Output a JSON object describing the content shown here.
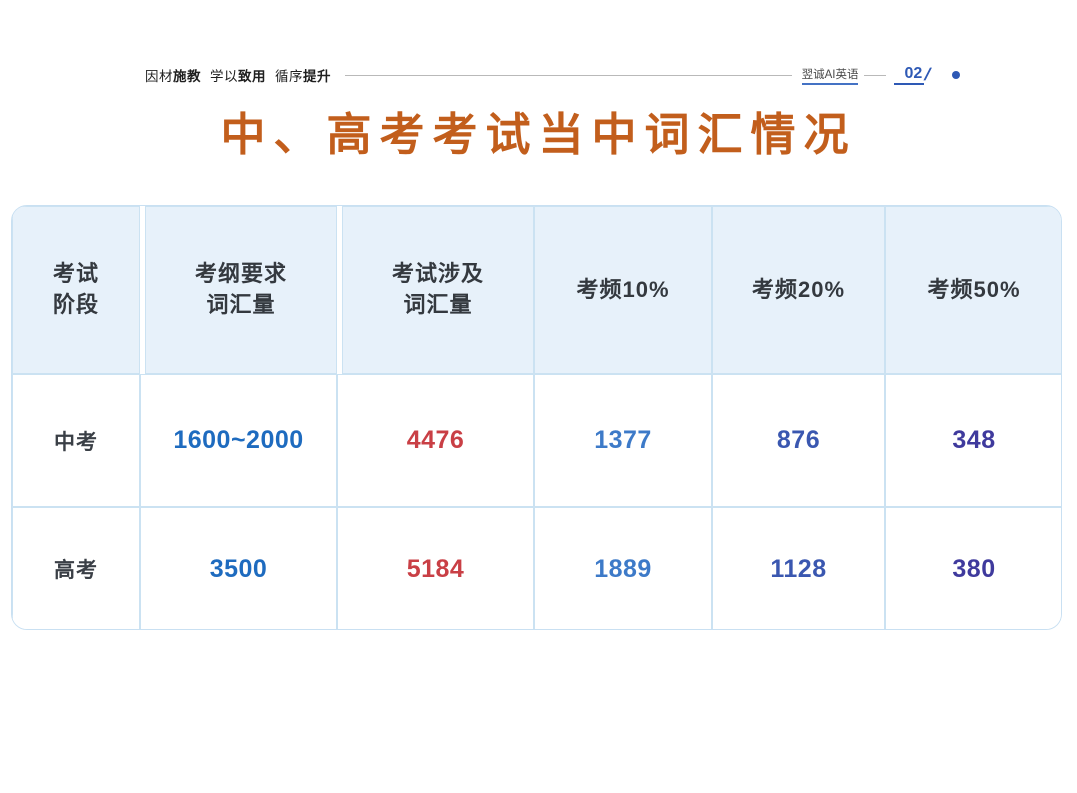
{
  "topbar": {
    "slogan": [
      {
        "text": "因材",
        "bold": false
      },
      {
        "text": "施教",
        "bold": true
      },
      {
        "text": "学以",
        "bold": false
      },
      {
        "text": "致用",
        "bold": true
      },
      {
        "text": "循序",
        "bold": false
      },
      {
        "text": "提升",
        "bold": true
      }
    ],
    "brand": "翌诚AI英语",
    "page_number": "02",
    "slash": "/"
  },
  "title": "中、高考考试当中词汇情况",
  "table": {
    "headers": [
      {
        "lines": [
          "考试",
          "阶段"
        ]
      },
      {
        "lines": [
          "考纲要求",
          "词汇量"
        ]
      },
      {
        "lines": [
          "考试涉及",
          "词汇量"
        ]
      },
      {
        "lines": [
          "考频10%"
        ]
      },
      {
        "lines": [
          "考频20%"
        ]
      },
      {
        "lines": [
          "考频50%"
        ]
      }
    ],
    "rows": [
      {
        "stage": "中考",
        "required": "1600~2000",
        "covered": "4476",
        "freq10": "1377",
        "freq20": "876",
        "freq50": "348"
      },
      {
        "stage": "高考",
        "required": "3500",
        "covered": "5184",
        "freq10": "1889",
        "freq20": "1128",
        "freq50": "380"
      }
    ]
  },
  "colors": {
    "title_orange": "#c25e1c",
    "required_blue": "#1e6bbf",
    "covered_red": "#c93f45",
    "freq10_blue": "#3d7ac8",
    "freq20_blue": "#3a57b0",
    "freq50_purple": "#3f3a9d",
    "table_border_blue": "#cbe2f2",
    "header_fill": "#e7f1fa",
    "accent_blue": "#2e59b5"
  }
}
